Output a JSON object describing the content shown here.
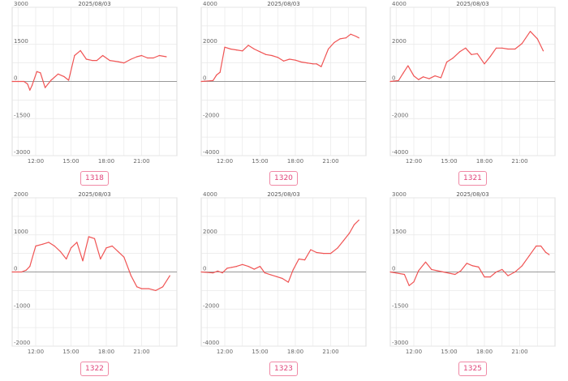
{
  "colors": {
    "line": "#f05454",
    "badge_border": "#f08aa6",
    "badge_text": "#e0457a",
    "grid": "#e8e8e8",
    "zero": "#999999"
  },
  "chart_data": [
    {
      "type": "line",
      "title": "2025/08/03",
      "badge": "1318",
      "ylim": [
        -3000,
        3000
      ],
      "yticks": [
        -3000,
        -1500,
        0,
        1500,
        3000
      ],
      "xlim": [
        10,
        24
      ],
      "xticks": [
        12,
        15,
        18,
        21
      ],
      "xtick_labels": [
        "12:00",
        "15:00",
        "18:00",
        "21:00"
      ],
      "x": [
        10.0,
        10.5,
        11.0,
        11.3,
        11.5,
        11.7,
        12.1,
        12.4,
        12.8,
        13.3,
        13.9,
        14.4,
        14.8,
        15.3,
        15.8,
        16.3,
        16.8,
        17.2,
        17.7,
        18.3,
        19.0,
        19.5,
        20.1,
        20.6,
        21.0,
        21.5,
        22.0,
        22.5,
        23.1
      ],
      "y": [
        0,
        0,
        0,
        -100,
        -350,
        -150,
        400,
        350,
        -250,
        50,
        300,
        200,
        50,
        1050,
        1250,
        900,
        850,
        850,
        1050,
        850,
        800,
        750,
        900,
        1000,
        1050,
        950,
        950,
        1050,
        1000
      ]
    },
    {
      "type": "line",
      "title": "2025/08/03",
      "badge": "1320",
      "ylim": [
        -4000,
        4000
      ],
      "yticks": [
        -4000,
        -2000,
        0,
        2000,
        4000
      ],
      "xlim": [
        10,
        24
      ],
      "xticks": [
        12,
        15,
        18,
        21
      ],
      "xtick_labels": [
        "12:00",
        "15:00",
        "18:00",
        "21:00"
      ],
      "x": [
        10.0,
        11.0,
        11.3,
        11.6,
        12.0,
        12.5,
        13.0,
        13.5,
        14.0,
        14.5,
        15.0,
        15.5,
        16.0,
        16.5,
        17.0,
        17.5,
        18.0,
        18.5,
        19.0,
        19.5,
        19.8,
        20.2,
        20.8,
        21.3,
        21.8,
        22.3,
        22.7,
        23.1,
        23.4
      ],
      "y": [
        0,
        50,
        350,
        500,
        1850,
        1750,
        1700,
        1650,
        1950,
        1750,
        1600,
        1450,
        1400,
        1300,
        1100,
        1200,
        1150,
        1050,
        1000,
        950,
        950,
        800,
        1750,
        2100,
        2300,
        2350,
        2550,
        2450,
        2350
      ]
    },
    {
      "type": "line",
      "title": "2025/08/03",
      "badge": "1321",
      "ylim": [
        -4000,
        4000
      ],
      "yticks": [
        -4000,
        -2000,
        0,
        2000,
        4000
      ],
      "xlim": [
        10,
        24
      ],
      "xticks": [
        12,
        15,
        18,
        21
      ],
      "xtick_labels": [
        "12:00",
        "15:00",
        "18:00",
        "21:00"
      ],
      "x": [
        10.0,
        10.7,
        11.1,
        11.5,
        12.0,
        12.4,
        12.8,
        13.3,
        13.8,
        14.3,
        14.8,
        15.3,
        15.9,
        16.4,
        16.9,
        17.4,
        18.0,
        18.5,
        19.0,
        19.5,
        20.0,
        20.6,
        21.2,
        21.9,
        22.5,
        23.0
      ],
      "y": [
        0,
        50,
        450,
        850,
        300,
        100,
        250,
        150,
        300,
        200,
        1050,
        1250,
        1600,
        1800,
        1450,
        1500,
        950,
        1350,
        1800,
        1800,
        1750,
        1750,
        2050,
        2700,
        2300,
        1650
      ]
    },
    {
      "type": "line",
      "title": "2025/08/03",
      "badge": "1322",
      "ylim": [
        -2000,
        2000
      ],
      "yticks": [
        -2000,
        -1000,
        0,
        1000,
        2000
      ],
      "xlim": [
        10,
        24
      ],
      "xticks": [
        12,
        15,
        18,
        21
      ],
      "xtick_labels": [
        "12:00",
        "15:00",
        "18:00",
        "21:00"
      ],
      "x": [
        10.0,
        10.8,
        11.2,
        11.5,
        12.0,
        12.6,
        13.1,
        13.6,
        14.1,
        14.6,
        15.0,
        15.5,
        16.0,
        16.5,
        17.0,
        17.5,
        18.0,
        18.5,
        19.0,
        19.5,
        20.1,
        20.6,
        21.0,
        21.6,
        22.2,
        22.8,
        23.4
      ],
      "y": [
        0,
        0,
        50,
        150,
        700,
        750,
        800,
        700,
        550,
        350,
        650,
        800,
        300,
        950,
        900,
        350,
        650,
        700,
        550,
        400,
        -100,
        -400,
        -450,
        -450,
        -500,
        -400,
        -100
      ]
    },
    {
      "type": "line",
      "title": "2025/08/03",
      "badge": "1323",
      "ylim": [
        -4000,
        4000
      ],
      "yticks": [
        -4000,
        -2000,
        0,
        2000,
        4000
      ],
      "xlim": [
        10,
        24
      ],
      "xticks": [
        12,
        15,
        18,
        21
      ],
      "xtick_labels": [
        "12:00",
        "15:00",
        "18:00",
        "21:00"
      ],
      "x": [
        10.0,
        11.0,
        11.4,
        11.8,
        12.2,
        12.6,
        13.0,
        13.5,
        14.0,
        14.5,
        15.0,
        15.4,
        15.9,
        16.4,
        16.9,
        17.4,
        17.8,
        18.3,
        18.8,
        19.3,
        19.8,
        20.4,
        21.0,
        21.6,
        22.1,
        22.6,
        23.0,
        23.4
      ],
      "y": [
        0,
        -50,
        50,
        -50,
        200,
        250,
        300,
        400,
        300,
        150,
        300,
        -50,
        -150,
        -250,
        -350,
        -550,
        100,
        700,
        650,
        1200,
        1050,
        1000,
        1000,
        1300,
        1700,
        2100,
        2550,
        2800
      ]
    },
    {
      "type": "line",
      "title": "2025/08/03",
      "badge": "1325",
      "ylim": [
        -3000,
        3000
      ],
      "yticks": [
        -3000,
        -1500,
        0,
        1500,
        3000
      ],
      "xlim": [
        10,
        24
      ],
      "xticks": [
        12,
        15,
        18,
        21
      ],
      "xtick_labels": [
        "12:00",
        "15:00",
        "18:00",
        "21:00"
      ],
      "x": [
        10.0,
        11.2,
        11.6,
        12.0,
        12.4,
        13.0,
        13.5,
        14.0,
        14.5,
        15.0,
        15.5,
        16.0,
        16.5,
        17.0,
        17.5,
        18.0,
        18.5,
        19.0,
        19.5,
        20.0,
        20.6,
        21.2,
        21.8,
        22.4,
        22.8,
        23.2,
        23.5
      ],
      "y": [
        0,
        -100,
        -550,
        -400,
        50,
        400,
        100,
        50,
        0,
        -50,
        -100,
        50,
        350,
        250,
        200,
        -200,
        -200,
        0,
        100,
        -150,
        0,
        250,
        650,
        1050,
        1050,
        800,
        700
      ]
    }
  ]
}
